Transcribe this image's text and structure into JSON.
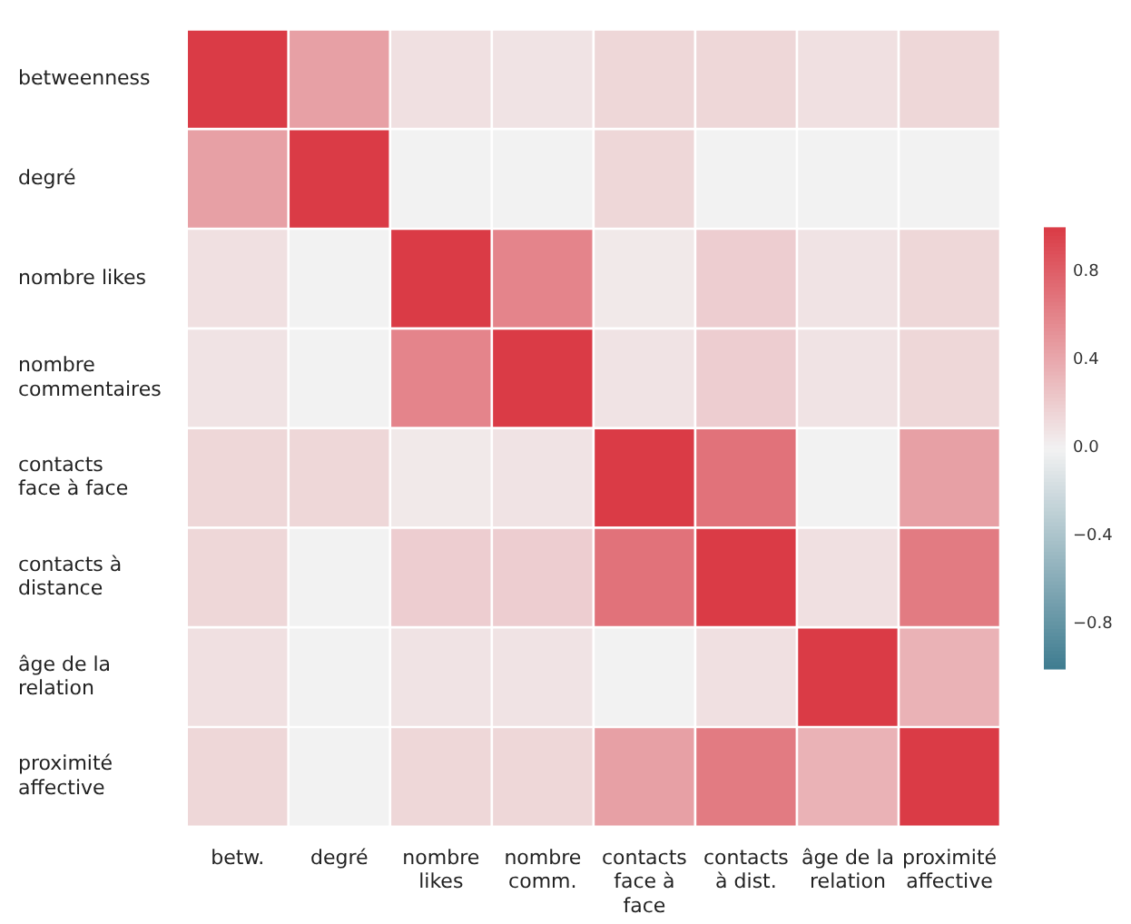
{
  "chart_data": {
    "type": "heatmap",
    "categories": [
      "betw.",
      "degré",
      "nombre likes",
      "nombre comm.",
      "contacts face à face",
      "contacts à dist.",
      "âge de la relation",
      "proximité affective"
    ],
    "y_categories": [
      "betweenness",
      "degré",
      "nombre likes",
      "nombre commentaires",
      "contacts face à face",
      "contacts à distance",
      "âge de la relation",
      "proximité affective"
    ],
    "cells": [
      [
        1,
        0.45,
        0.1,
        0.08,
        0.15,
        0.15,
        0.1,
        0.15
      ],
      [
        0.45,
        1,
        0,
        0,
        0.15,
        0,
        0,
        0
      ],
      [
        0.1,
        0,
        1,
        0.6,
        0.05,
        0.2,
        0.08,
        0.15
      ],
      [
        0.08,
        0,
        0.6,
        1,
        0.08,
        0.2,
        0.08,
        0.15
      ],
      [
        0.15,
        0.15,
        0.05,
        0.08,
        1,
        0.7,
        0,
        0.45
      ],
      [
        0.15,
        0,
        0.2,
        0.2,
        0.7,
        1,
        0.1,
        0.65
      ],
      [
        0.1,
        0,
        0.08,
        0.08,
        0,
        0.1,
        1,
        0.35
      ],
      [
        0.15,
        0,
        0.15,
        0.15,
        0.45,
        0.65,
        0.35,
        1
      ]
    ],
    "clim": [
      -1,
      1
    ],
    "cticks": [
      {
        "value": -0.8,
        "label": "−0.8"
      },
      {
        "value": -0.4,
        "label": "−0.4"
      },
      {
        "value": 0,
        "label": "0.0"
      },
      {
        "value": 0.4,
        "label": "0.4"
      },
      {
        "value": 0.8,
        "label": "0.8"
      }
    ]
  }
}
